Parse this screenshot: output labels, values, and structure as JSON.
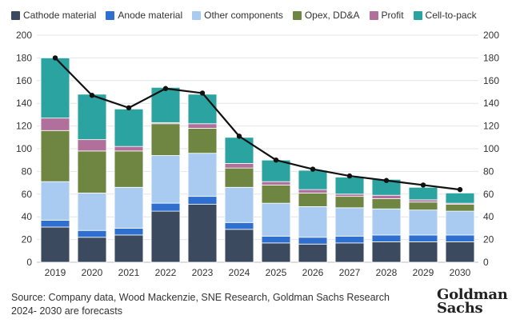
{
  "chart_data": {
    "type": "bar",
    "stacked": true,
    "categories": [
      "2019",
      "2020",
      "2021",
      "2022",
      "2023",
      "2024",
      "2025",
      "2026",
      "2027",
      "2028",
      "2029",
      "2030"
    ],
    "series": [
      {
        "name": "Cathode material",
        "color": "#3b4a5e",
        "values": [
          31,
          22,
          24,
          45,
          51,
          29,
          17,
          16,
          17,
          18,
          18,
          18
        ]
      },
      {
        "name": "Anode material",
        "color": "#2f6fcf",
        "values": [
          6,
          6,
          6,
          7,
          7,
          6,
          6,
          6,
          6,
          6,
          6,
          6
        ]
      },
      {
        "name": "Other components",
        "color": "#a9cbf2",
        "values": [
          34,
          33,
          36,
          42,
          38,
          31,
          29,
          27,
          25,
          23,
          22,
          21
        ]
      },
      {
        "name": "Opex, DD&A",
        "color": "#6f8642",
        "values": [
          45,
          37,
          32,
          28,
          22,
          17,
          16,
          12,
          10,
          9,
          7,
          6
        ]
      },
      {
        "name": "Profit",
        "color": "#b1709c",
        "values": [
          11,
          10,
          4,
          1,
          4,
          4,
          3,
          3,
          2,
          3,
          2,
          1
        ]
      },
      {
        "name": "Cell-to-pack",
        "color": "#2aa3a1",
        "values": [
          53,
          40,
          33,
          31,
          26,
          23,
          19,
          17,
          15,
          14,
          11,
          9
        ]
      }
    ],
    "line": {
      "values": [
        180,
        147,
        136,
        153,
        149,
        111,
        90,
        82,
        76,
        72,
        68,
        64
      ],
      "color": "#111111"
    },
    "ylim": [
      0,
      200
    ],
    "yticks": [
      0,
      20,
      40,
      60,
      80,
      100,
      120,
      140,
      160,
      180,
      200
    ],
    "grid": true,
    "legend_position": "top"
  },
  "source": {
    "line1": "Source: Company data, Wood Mackenzie, SNE Research, Goldman Sachs Research",
    "line2": "2024- 2030 are forecasts"
  },
  "logo": {
    "line1": "Goldman",
    "line2": "Sachs"
  }
}
